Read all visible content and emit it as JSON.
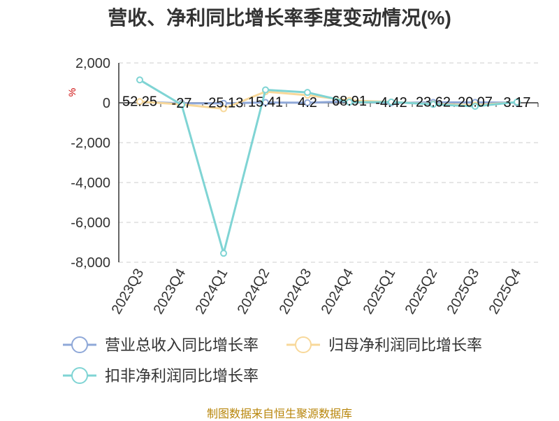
{
  "chart_data": {
    "type": "line",
    "title": "营收、净利同比增长率季度变动情况(%)",
    "ylabel": "%",
    "categories": [
      "2023Q3",
      "2023Q4",
      "2024Q1",
      "2024Q2",
      "2024Q3",
      "2024Q4",
      "2025Q1",
      "2025Q2",
      "2025Q3",
      "2025Q4"
    ],
    "ylim": [
      -8000,
      2000
    ],
    "yticks": [
      2000,
      0,
      -2000,
      -4000,
      -6000,
      -8000
    ],
    "ytick_labels": [
      "2,000",
      "0",
      "-2,000",
      "-4,000",
      "-6,000",
      "-8,000"
    ],
    "grid": true,
    "legend_position": "bottom",
    "series": [
      {
        "name": "营业总收入同比增长率",
        "color": "#8fa8d8",
        "values": [
          52.25,
          -27,
          -25.13,
          15.41,
          4.2,
          68.91,
          -4.42,
          23.62,
          20.07,
          3.17
        ],
        "value_labels": [
          "52.25",
          "-27",
          "-25.13",
          "15.41",
          "4.2",
          "68.91",
          "-4.42",
          "23.62",
          "20.07",
          "3.17"
        ]
      },
      {
        "name": "归母净利润同比增长率",
        "color": "#f8d89a",
        "values": [
          60,
          -80,
          -300,
          560,
          380,
          120,
          40,
          -60,
          -120,
          30
        ]
      },
      {
        "name": "扣非净利润同比增长率",
        "color": "#7fd4d4",
        "values": [
          1150,
          -100,
          -7550,
          650,
          520,
          30,
          40,
          -80,
          -180,
          40
        ]
      }
    ]
  },
  "footer": {
    "source": "制图数据来自恒生聚源数据库"
  }
}
